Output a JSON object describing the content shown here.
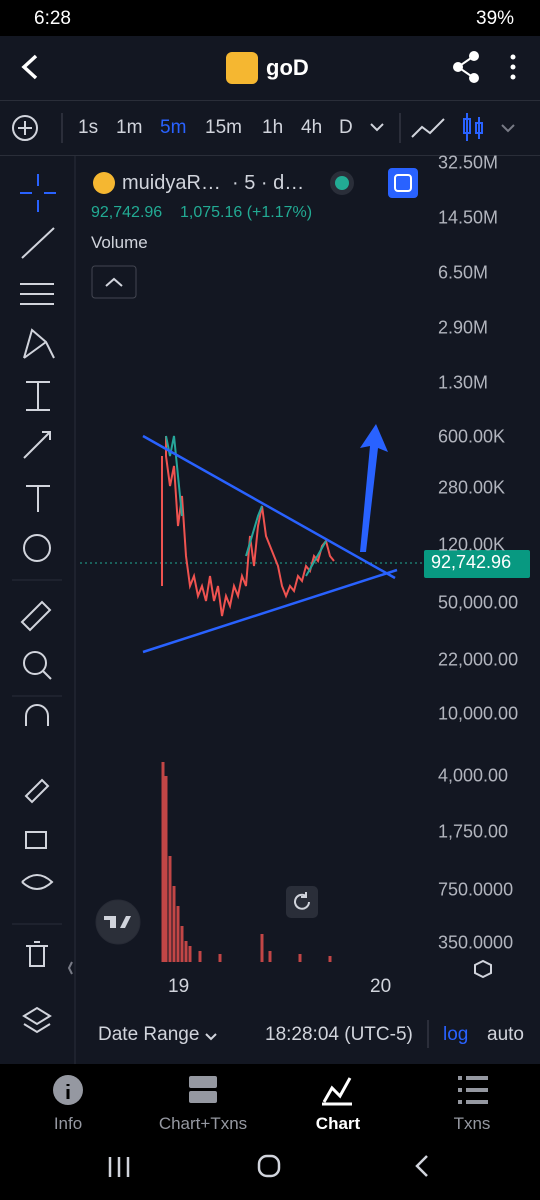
{
  "status_bar": {
    "time": "6:28",
    "battery": "39%"
  },
  "header": {
    "title": "goD"
  },
  "timeframes": {
    "items": [
      "1s",
      "1m",
      "5m",
      "15m",
      "1h",
      "4h",
      "D"
    ],
    "active": "5m"
  },
  "legend": {
    "symbol": "muidyaR…",
    "interval": "· 5 · d…",
    "price": "92,742.96",
    "change": "1,075.16 (+1.17%)",
    "indicator": "Volume"
  },
  "price_axis": [
    "32.50M",
    "14.50M",
    "6.50M",
    "2.90M",
    "1.30M",
    "600.00K",
    "280.00K",
    "120.00K",
    "50,000.00",
    "22,000.00",
    "10,000.00",
    "4,000.00",
    "1,750.00",
    "750.0000",
    "350.0000"
  ],
  "current_price": "92,742.96",
  "time_axis": [
    "19",
    "20"
  ],
  "footer": {
    "date_range": "Date Range",
    "time": "18:28:04 (UTC-5)",
    "log": "log",
    "auto": "auto"
  },
  "nav": {
    "items": [
      "Info",
      "Chart+Txns",
      "Chart",
      "Txns"
    ],
    "active": "Chart"
  }
}
